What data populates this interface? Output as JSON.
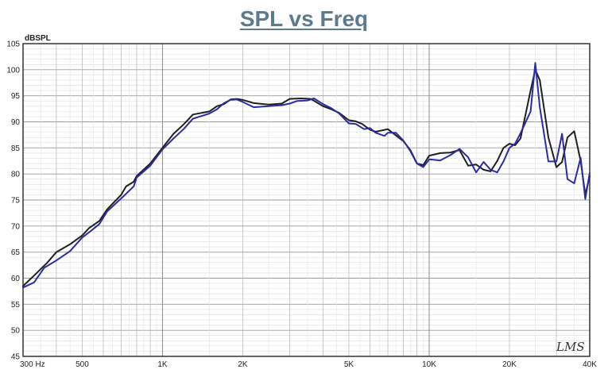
{
  "chart_data": {
    "type": "line",
    "title": "SPL vs Freq",
    "ylabel": "dBSPL",
    "xlabel": "",
    "x_scale": "log",
    "xlim": [
      300,
      40000
    ],
    "ylim": [
      45,
      105
    ],
    "grid": true,
    "x_tick_labels": [
      {
        "value": 300,
        "label": "300  Hz"
      },
      {
        "value": 500,
        "label": "500"
      },
      {
        "value": 1000,
        "label": "1K"
      },
      {
        "value": 2000,
        "label": "2K"
      },
      {
        "value": 5000,
        "label": "5K"
      },
      {
        "value": 10000,
        "label": "10K"
      },
      {
        "value": 20000,
        "label": "20K"
      },
      {
        "value": 40000,
        "label": "40K"
      }
    ],
    "y_ticks": [
      45,
      50,
      55,
      60,
      65,
      70,
      75,
      80,
      85,
      90,
      95,
      100,
      105
    ],
    "series": [
      {
        "color": "#1f1f1f",
        "points": [
          [
            300,
            58.5
          ],
          [
            330,
            60.5
          ],
          [
            370,
            63
          ],
          [
            400,
            65
          ],
          [
            450,
            66.5
          ],
          [
            500,
            68.2
          ],
          [
            530,
            69.6
          ],
          [
            580,
            71
          ],
          [
            620,
            73.2
          ],
          [
            700,
            76
          ],
          [
            730,
            77.6
          ],
          [
            780,
            78.5
          ],
          [
            800,
            79.6
          ],
          [
            900,
            82
          ],
          [
            1000,
            85
          ],
          [
            1100,
            87.7
          ],
          [
            1200,
            89.5
          ],
          [
            1300,
            91.4
          ],
          [
            1500,
            92
          ],
          [
            1600,
            93
          ],
          [
            1700,
            93.4
          ],
          [
            1800,
            94.3
          ],
          [
            1900,
            94.4
          ],
          [
            2000,
            94.2
          ],
          [
            2200,
            93.6
          ],
          [
            2500,
            93.3
          ],
          [
            2800,
            93.5
          ],
          [
            3000,
            94.4
          ],
          [
            3300,
            94.5
          ],
          [
            3600,
            94.4
          ],
          [
            4000,
            93
          ],
          [
            4300,
            92.4
          ],
          [
            4600,
            91.7
          ],
          [
            5000,
            90.3
          ],
          [
            5300,
            90.1
          ],
          [
            5600,
            89.6
          ],
          [
            6000,
            88.5
          ],
          [
            6300,
            88.1
          ],
          [
            7000,
            88.6
          ],
          [
            7500,
            87.4
          ],
          [
            8000,
            86.3
          ],
          [
            8500,
            84.6
          ],
          [
            9000,
            82
          ],
          [
            9500,
            81.7
          ],
          [
            10000,
            83.5
          ],
          [
            11000,
            84
          ],
          [
            12000,
            84.1
          ],
          [
            13000,
            84.6
          ],
          [
            14000,
            81.6
          ],
          [
            15000,
            81.8
          ],
          [
            16000,
            80.8
          ],
          [
            17000,
            80.5
          ],
          [
            18000,
            82.5
          ],
          [
            19000,
            85
          ],
          [
            20000,
            85.8
          ],
          [
            21000,
            85.5
          ],
          [
            22000,
            86.8
          ],
          [
            24000,
            96
          ],
          [
            25000,
            100
          ],
          [
            26000,
            98
          ],
          [
            28000,
            87
          ],
          [
            30000,
            81.3
          ],
          [
            31500,
            82.3
          ],
          [
            33000,
            87
          ],
          [
            35000,
            88.2
          ],
          [
            37000,
            82.5
          ],
          [
            38500,
            76
          ],
          [
            40000,
            79.6
          ]
        ]
      },
      {
        "color": "#2b2ba8",
        "points": [
          [
            300,
            58.2
          ],
          [
            330,
            59.2
          ],
          [
            360,
            62
          ],
          [
            400,
            63.4
          ],
          [
            450,
            65.2
          ],
          [
            500,
            67.8
          ],
          [
            540,
            69.1
          ],
          [
            580,
            70.4
          ],
          [
            620,
            72.8
          ],
          [
            700,
            75.3
          ],
          [
            780,
            77.6
          ],
          [
            800,
            79.3
          ],
          [
            900,
            81.6
          ],
          [
            1000,
            84.7
          ],
          [
            1100,
            86.8
          ],
          [
            1200,
            88.6
          ],
          [
            1300,
            90.6
          ],
          [
            1500,
            91.6
          ],
          [
            1600,
            92.4
          ],
          [
            1700,
            93.6
          ],
          [
            1800,
            94.2
          ],
          [
            1900,
            94.3
          ],
          [
            2000,
            93.8
          ],
          [
            2200,
            92.8
          ],
          [
            2500,
            93
          ],
          [
            2800,
            93.2
          ],
          [
            3000,
            93.5
          ],
          [
            3200,
            94
          ],
          [
            3500,
            94.1
          ],
          [
            3700,
            94.5
          ],
          [
            4000,
            93.4
          ],
          [
            4300,
            92.6
          ],
          [
            4600,
            91.6
          ],
          [
            5000,
            89.7
          ],
          [
            5300,
            89.6
          ],
          [
            5700,
            88.6
          ],
          [
            6000,
            88.8
          ],
          [
            6300,
            87.9
          ],
          [
            6800,
            87.3
          ],
          [
            7000,
            87.9
          ],
          [
            7500,
            87.9
          ],
          [
            8000,
            86.4
          ],
          [
            8500,
            84.4
          ],
          [
            9000,
            82
          ],
          [
            9500,
            81.3
          ],
          [
            10000,
            82.8
          ],
          [
            11000,
            82.6
          ],
          [
            12000,
            83.6
          ],
          [
            13000,
            84.8
          ],
          [
            14000,
            83.2
          ],
          [
            15000,
            80.3
          ],
          [
            16000,
            82.3
          ],
          [
            17000,
            80.8
          ],
          [
            18000,
            80.3
          ],
          [
            19000,
            82.4
          ],
          [
            20000,
            85
          ],
          [
            21000,
            85.8
          ],
          [
            22000,
            87.8
          ],
          [
            24000,
            92
          ],
          [
            25000,
            101.3
          ],
          [
            26000,
            92.8
          ],
          [
            28000,
            82.4
          ],
          [
            30000,
            82.4
          ],
          [
            31500,
            87.7
          ],
          [
            33000,
            79
          ],
          [
            35000,
            78.2
          ],
          [
            37000,
            83.1
          ],
          [
            38500,
            75.2
          ],
          [
            40000,
            80.2
          ]
        ]
      }
    ],
    "watermark": "LMS"
  }
}
